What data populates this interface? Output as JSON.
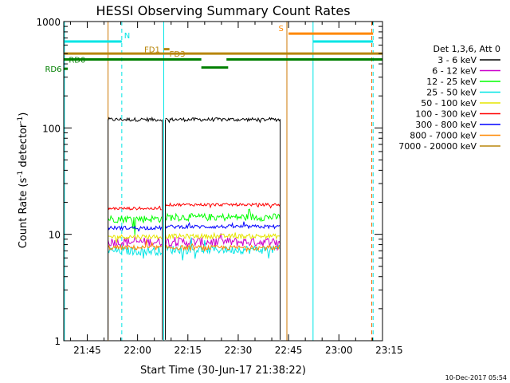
{
  "chart_data": {
    "type": "line",
    "title": "HESSI Observing Summary Count Rates",
    "xlabel": "Start Time (30-Jun-17 21:38:22)",
    "ylabel_main": "Count Rate (s",
    "ylabel_sup1": "-1",
    "ylabel_mid": " detector",
    "ylabel_sup2": "-1",
    "ylabel_end": ")",
    "yscale": "log",
    "ylim": [
      1,
      1000
    ],
    "xlim_minutes": [
      0,
      95
    ],
    "x_reference_time": "21:38",
    "x_ticks": [
      {
        "label": "21:45",
        "minutes": 7
      },
      {
        "label": "22:00",
        "minutes": 22
      },
      {
        "label": "22:15",
        "minutes": 37
      },
      {
        "label": "22:30",
        "minutes": 52
      },
      {
        "label": "22:45",
        "minutes": 67
      },
      {
        "label": "23:00",
        "minutes": 82
      },
      {
        "label": "23:15",
        "minutes": 97
      }
    ],
    "y_ticks": [
      {
        "label": "1",
        "value": 1
      },
      {
        "label": "10",
        "value": 10
      },
      {
        "label": "100",
        "value": 100
      },
      {
        "label": "1000",
        "value": 1000
      }
    ],
    "legend_title": "Det 1,3,6, Att 0",
    "legend_position": "right",
    "series": [
      {
        "name": "3 - 6 keV",
        "color": "#000000",
        "segments": [
          {
            "start": 13.2,
            "end": 29.4,
            "level": 120,
            "noise": 0.04
          },
          {
            "start": 30.3,
            "end": 64.5,
            "level": 120,
            "noise": 0.04
          }
        ]
      },
      {
        "name": "6 - 12 keV",
        "color": "#cc00cc",
        "segments": [
          {
            "start": 13.2,
            "end": 29.4,
            "level": 8.5,
            "noise": 0.1
          },
          {
            "start": 30.3,
            "end": 64.5,
            "level": 8.5,
            "noise": 0.1
          }
        ]
      },
      {
        "name": "12 - 25 keV",
        "color": "#00ff00",
        "segments": [
          {
            "start": 13.2,
            "end": 29.4,
            "level": 14,
            "noise": 0.08
          },
          {
            "start": 30.3,
            "end": 64.5,
            "level": 14.5,
            "noise": 0.08
          }
        ]
      },
      {
        "name": "25 - 50 keV",
        "color": "#00e5e5",
        "segments": [
          {
            "start": 13.2,
            "end": 29.4,
            "level": 7,
            "noise": 0.09
          },
          {
            "start": 30.3,
            "end": 64.5,
            "level": 7.2,
            "noise": 0.09
          }
        ]
      },
      {
        "name": "50 - 100 keV",
        "color": "#e5e500",
        "segments": [
          {
            "start": 13.2,
            "end": 29.4,
            "level": 9.5,
            "noise": 0.05
          },
          {
            "start": 30.3,
            "end": 64.5,
            "level": 9.6,
            "noise": 0.05
          }
        ]
      },
      {
        "name": "100 - 300 keV",
        "color": "#ff0000",
        "segments": [
          {
            "start": 13.2,
            "end": 29.4,
            "level": 17.5,
            "noise": 0.03
          },
          {
            "start": 30.3,
            "end": 64.5,
            "level": 19,
            "noise": 0.03
          }
        ]
      },
      {
        "name": "300 - 800 keV",
        "color": "#0000ff",
        "segments": [
          {
            "start": 13.2,
            "end": 29.4,
            "level": 11.5,
            "noise": 0.04
          },
          {
            "start": 30.3,
            "end": 64.5,
            "level": 11.8,
            "noise": 0.04
          }
        ]
      },
      {
        "name": "800 - 7000 keV",
        "color": "#ff8800",
        "segments": [
          {
            "start": 13.2,
            "end": 29.4,
            "level": 7.5,
            "noise": 0.05
          },
          {
            "start": 30.3,
            "end": 64.5,
            "level": 7.5,
            "noise": 0.05
          }
        ]
      },
      {
        "name": "7000 - 20000 keV",
        "color": "#b8860b",
        "segments": []
      }
    ],
    "vertical_markers": [
      {
        "minutes": 0.2,
        "color": "#00e5e5",
        "style": "solid"
      },
      {
        "minutes": 13.2,
        "color": "#cc7700",
        "style": "solid"
      },
      {
        "minutes": 17.3,
        "color": "#00e5e5",
        "style": "dashed"
      },
      {
        "minutes": 29.8,
        "color": "#00e5e5",
        "style": "solid"
      },
      {
        "minutes": 66.5,
        "color": "#cc7700",
        "style": "solid"
      },
      {
        "minutes": 74.3,
        "color": "#00e5e5",
        "style": "solid"
      },
      {
        "minutes": 91.8,
        "color": "#ff6600",
        "style": "dashed"
      },
      {
        "minutes": 92.2,
        "color": "#00e5e5",
        "style": "dashed"
      }
    ],
    "flag_bars": [
      {
        "label": "N",
        "color": "#00e5e5",
        "level": 650,
        "intervals": [
          [
            0,
            17.3
          ],
          [
            74.3,
            92.2
          ]
        ],
        "width": 3
      },
      {
        "label": "S",
        "color": "#ff8800",
        "level": 770,
        "intervals": [
          [
            67,
            92.2
          ]
        ],
        "width": 3
      },
      {
        "label": "FD1",
        "color": "#b8860b",
        "level": 550,
        "intervals": [
          [
            29.8,
            31.5
          ]
        ],
        "width": 3
      },
      {
        "label": "FD3",
        "color": "#b8860b",
        "level": 500,
        "intervals": [
          [
            0,
            95
          ]
        ],
        "width": 3
      },
      {
        "label": "RD0",
        "color": "#007f00",
        "level": 440,
        "intervals": [
          [
            0,
            41
          ],
          [
            48.5,
            95
          ]
        ],
        "width": 3
      },
      {
        "label": "",
        "color": "#007f00",
        "level": 370,
        "intervals": [
          [
            41,
            49
          ]
        ],
        "width": 3
      },
      {
        "label": "RD6",
        "color": "#007f00",
        "level": 360,
        "intervals": [
          [
            0,
            1.2
          ]
        ],
        "width": 3
      }
    ],
    "footer_date": "10-Dec-2017 05:54"
  }
}
